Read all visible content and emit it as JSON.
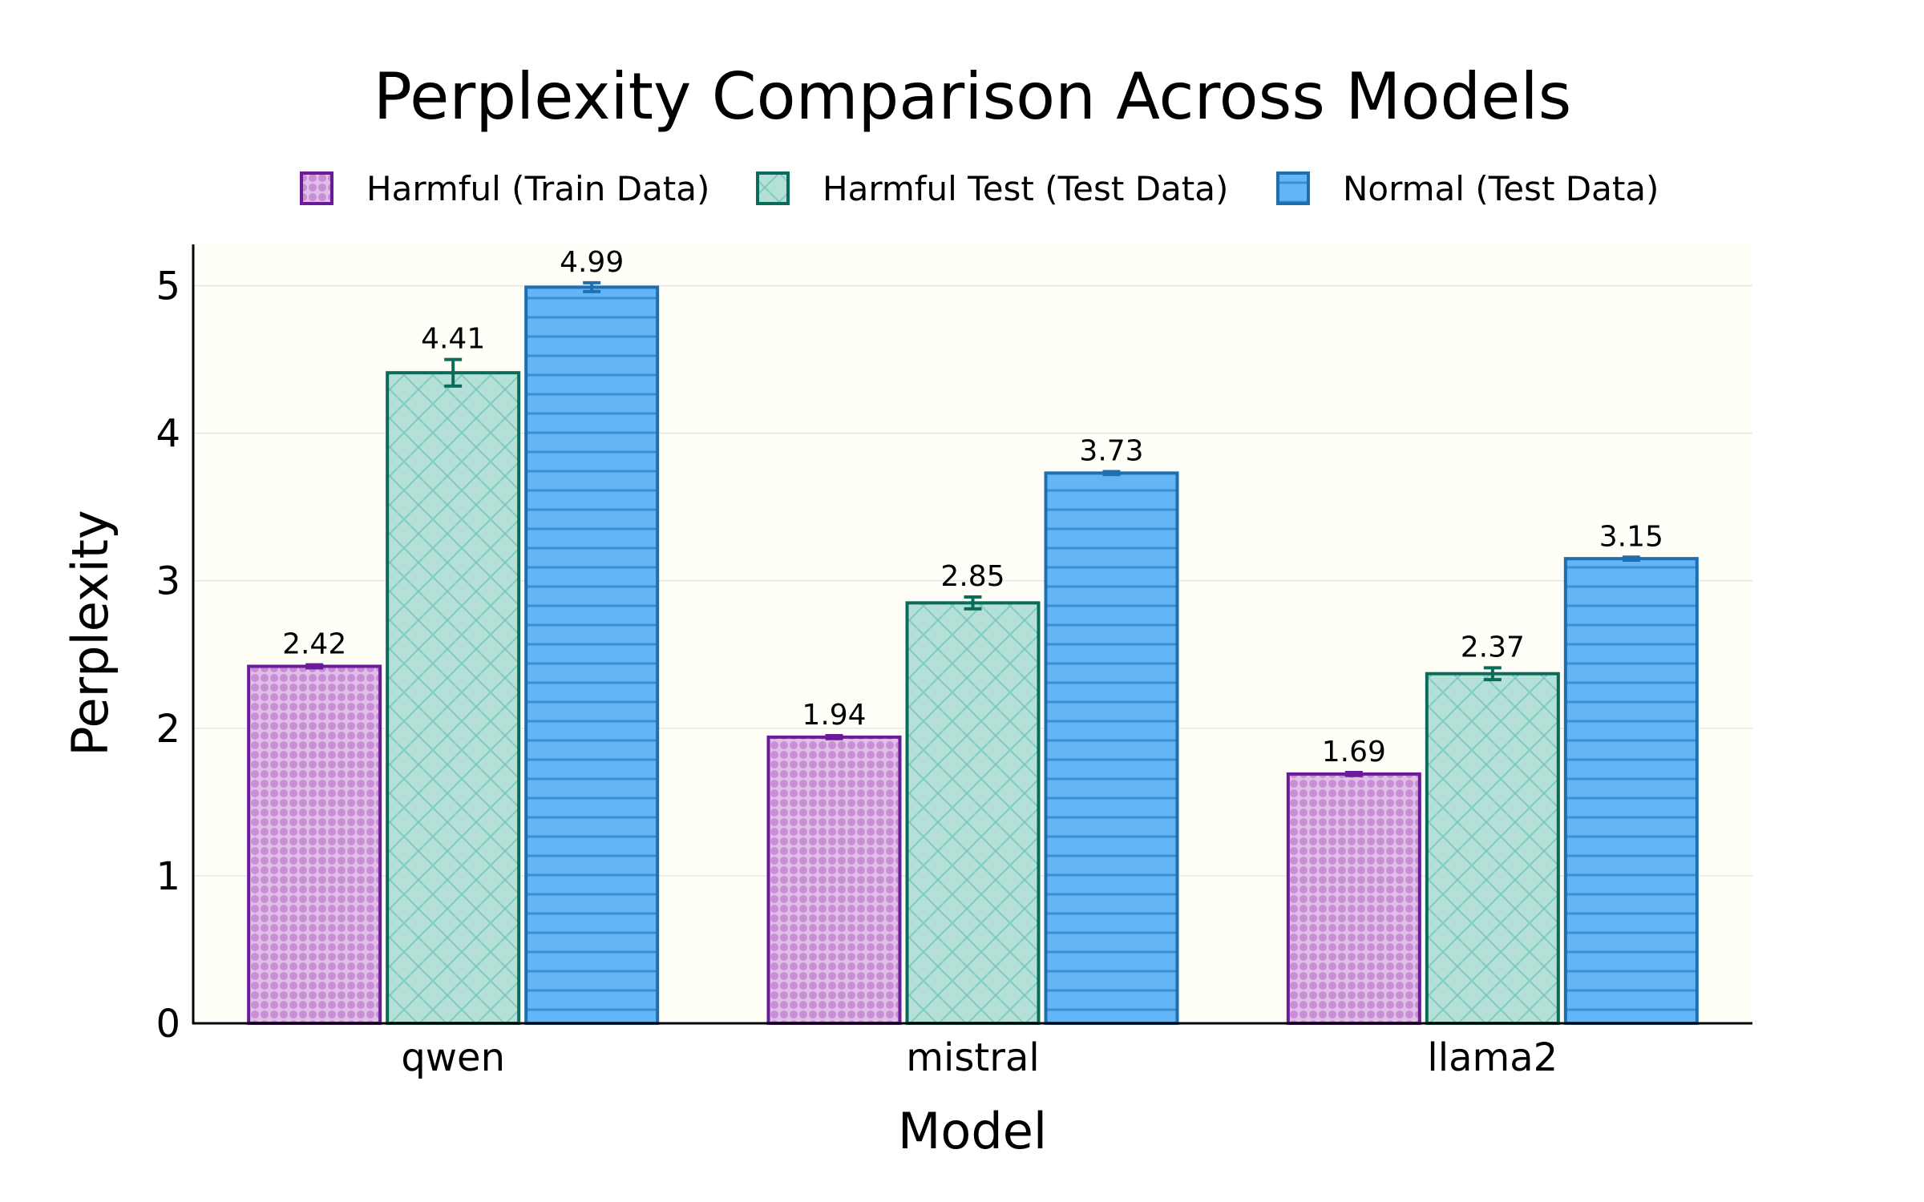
{
  "chart_data": {
    "type": "bar",
    "title": "Perplexity Comparison Across Models",
    "xlabel": "Model",
    "ylabel": "Perplexity",
    "categories": [
      "qwen",
      "mistral",
      "llama2"
    ],
    "ylim": [
      0,
      5.28
    ],
    "yticks": [
      0,
      1,
      2,
      3,
      4,
      5
    ],
    "grid": "horizontal",
    "legend_position": "top-center",
    "series": [
      {
        "name": "Harmful (Train Data)",
        "values": [
          2.42,
          1.94,
          1.69
        ],
        "labels": [
          "2.42",
          "1.94",
          "1.69"
        ],
        "errors": [
          0.01,
          0.01,
          0.01
        ],
        "fill": "#e2bfe6",
        "edge": "#6a1b9a",
        "pattern_color": "#c88fd6",
        "pattern": "dots"
      },
      {
        "name": "Harmful Test (Test Data)",
        "values": [
          4.41,
          2.85,
          2.37
        ],
        "labels": [
          "4.41",
          "2.85",
          "2.37"
        ],
        "errors": [
          0.09,
          0.04,
          0.04
        ],
        "fill": "#b5e0d8",
        "edge": "#0b6b5a",
        "pattern_color": "#7fcbbd",
        "pattern": "crosshatch"
      },
      {
        "name": "Normal (Test Data)",
        "values": [
          4.99,
          3.73,
          3.15
        ],
        "labels": [
          "4.99",
          "3.73",
          "3.15"
        ],
        "errors": [
          0.03,
          0.01,
          0.01
        ],
        "fill": "#64b5f6",
        "edge": "#1e6fb0",
        "pattern_color": "#3a8fd6",
        "pattern": "horizontal-lines"
      }
    ],
    "colors": {
      "plot_background": "#fffff8",
      "grid": "#e6e6e6",
      "axis": "#000000"
    }
  }
}
